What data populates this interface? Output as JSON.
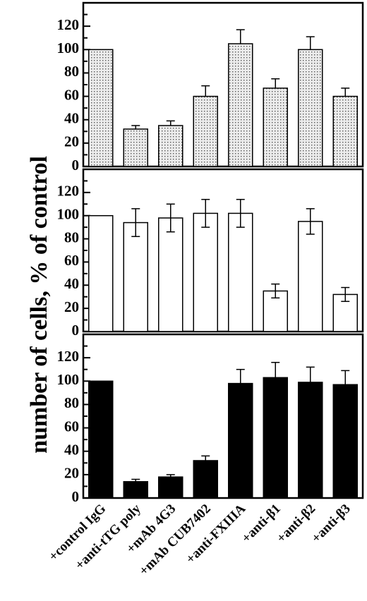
{
  "chart_data": {
    "type": "bar",
    "ylabel": "number of cells, % of control",
    "categories": [
      "+control IgG",
      "+anti-tTG poly",
      "+mAb 4G3",
      "+mAb CUB7402",
      "+anti-FXIIIA",
      "+anti-β1",
      "+anti-β2",
      "+anti-β3"
    ],
    "panels": [
      {
        "fill": "dotted-gray",
        "ylim": [
          0,
          140
        ],
        "yticks": [
          0,
          20,
          40,
          60,
          80,
          100,
          120
        ],
        "values": [
          100,
          32,
          35,
          60,
          105,
          67,
          100,
          60
        ],
        "errors": [
          0,
          3,
          4,
          9,
          12,
          8,
          11,
          7
        ]
      },
      {
        "fill": "white",
        "ylim": [
          0,
          140
        ],
        "yticks": [
          0,
          20,
          40,
          60,
          80,
          100,
          120
        ],
        "values": [
          100,
          94,
          98,
          102,
          102,
          35,
          95,
          32
        ],
        "errors": [
          0,
          12,
          12,
          12,
          12,
          6,
          11,
          6
        ]
      },
      {
        "fill": "black",
        "ylim": [
          0,
          140
        ],
        "yticks": [
          0,
          20,
          40,
          60,
          80,
          100,
          120
        ],
        "values": [
          100,
          14,
          18,
          32,
          98,
          103,
          99,
          97
        ],
        "errors": [
          0,
          2,
          2,
          4,
          12,
          13,
          13,
          12
        ]
      }
    ]
  }
}
